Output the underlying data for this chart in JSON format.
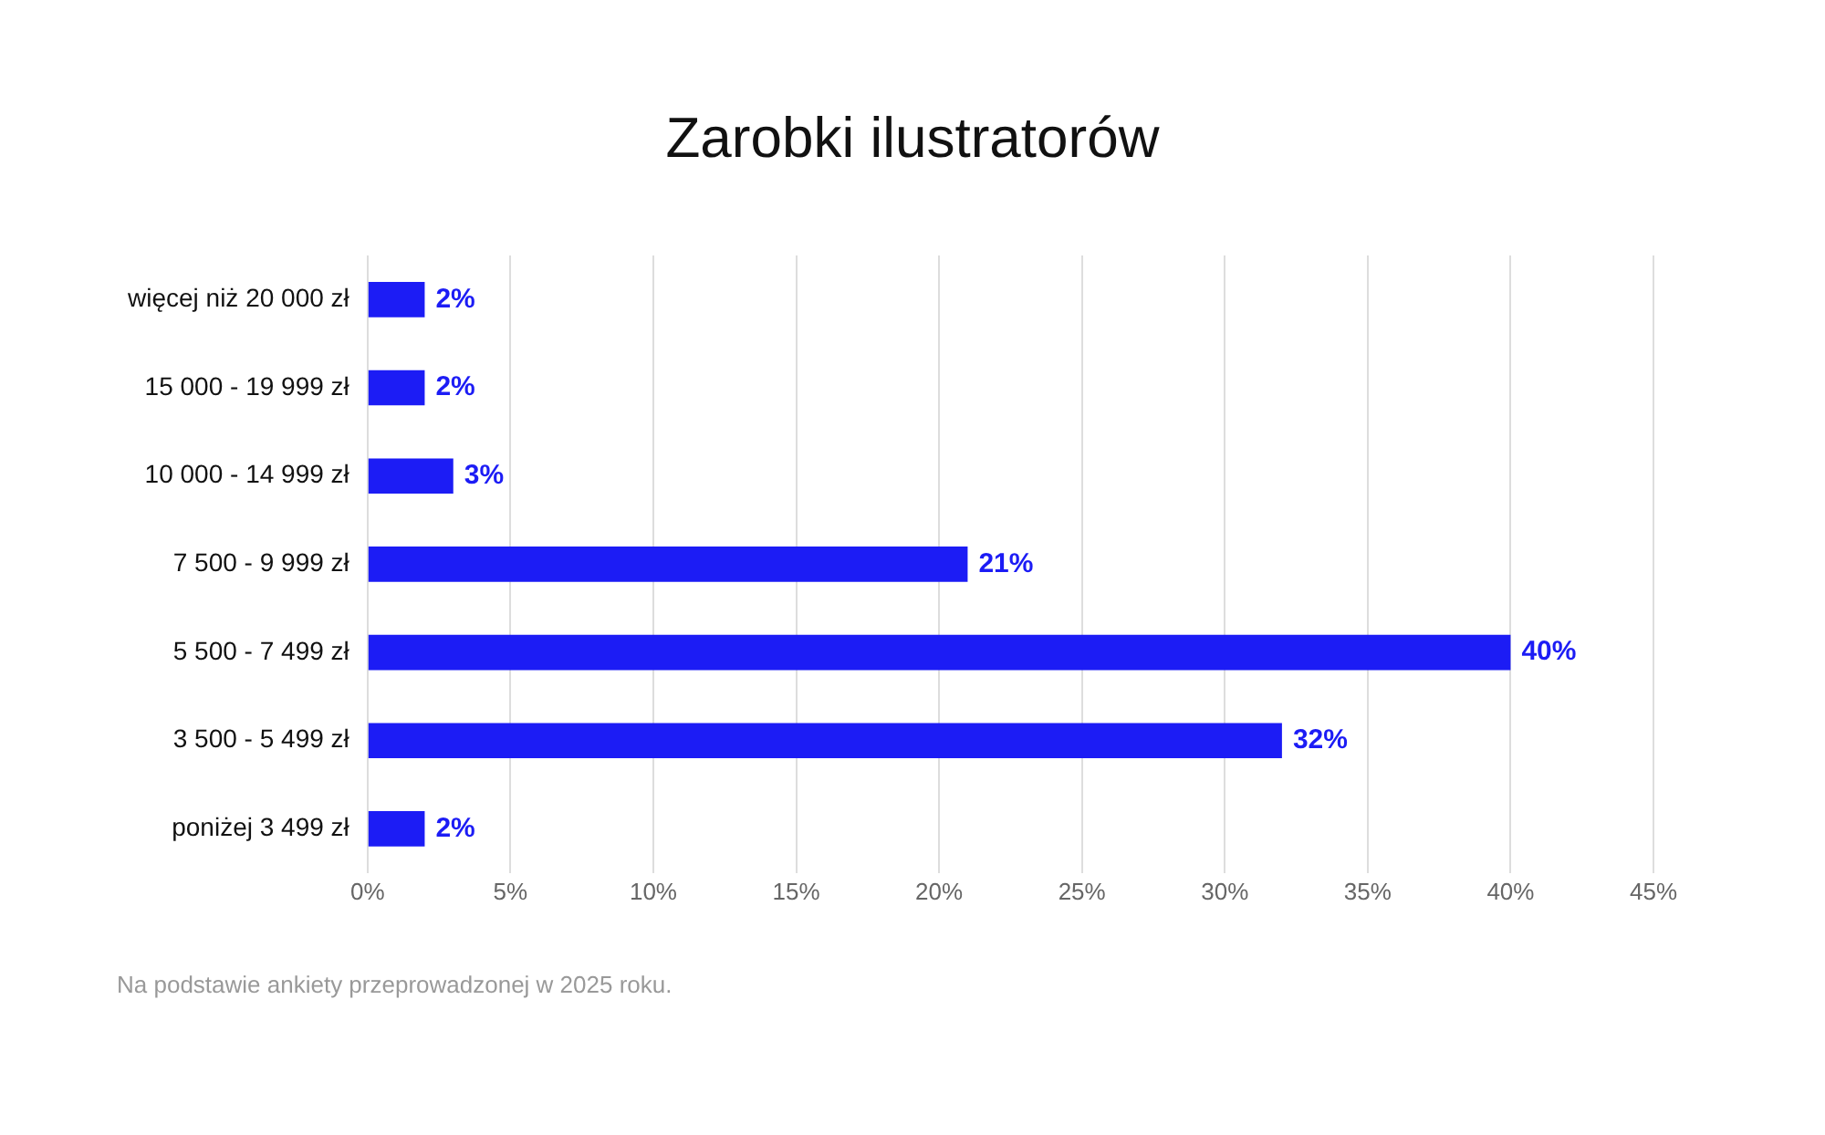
{
  "chart_data": {
    "type": "bar",
    "orientation": "horizontal",
    "title": "Zarobki ilustratorów",
    "categories": [
      "więcej niż 20 000 zł",
      "15 000 - 19 999 zł",
      "10 000 - 14 999 zł",
      "7 500 - 9 999 zł",
      "5 500 - 7 499 zł",
      "3 500 - 5 499 zł",
      "poniżej 3 499 zł"
    ],
    "values": [
      2,
      2,
      3,
      21,
      40,
      32,
      2
    ],
    "color": "#1c1cf5",
    "value_labels": [
      "2%",
      "2%",
      "3%",
      "21%",
      "40%",
      "32%",
      "2%"
    ],
    "xlim": [
      0,
      45
    ],
    "xticks": [
      {
        "value": 0,
        "label": "0%"
      },
      {
        "value": 5,
        "label": "5%"
      },
      {
        "value": 10,
        "label": "10%"
      },
      {
        "value": 15,
        "label": "15%"
      },
      {
        "value": 20,
        "label": "20%"
      },
      {
        "value": 25,
        "label": "25%"
      },
      {
        "value": 30,
        "label": "30%"
      },
      {
        "value": 35,
        "label": "35%"
      },
      {
        "value": 40,
        "label": "40%"
      },
      {
        "value": 45,
        "label": "45%"
      }
    ],
    "grid": "x",
    "annotations": [
      "Na podstawie ankiety przeprowadzonej w 2025 roku."
    ]
  }
}
